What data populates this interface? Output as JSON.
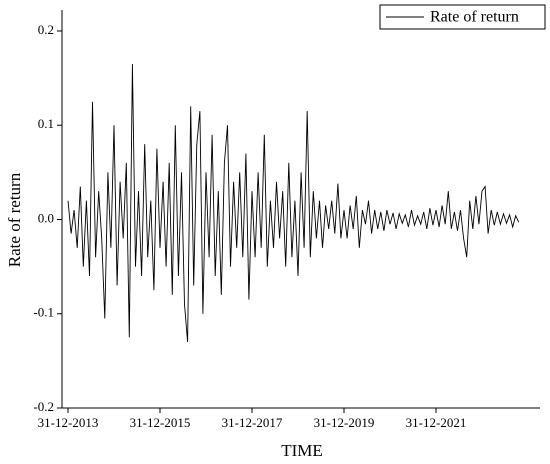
{
  "chart_data": {
    "type": "line",
    "title": null,
    "xlabel": "TIME",
    "ylabel": "Rate of return",
    "categories": [
      "31-12-2013",
      null,
      null,
      null,
      null,
      null,
      null,
      null,
      null,
      null,
      null,
      null,
      null,
      null,
      null,
      null,
      null,
      null,
      null,
      null,
      null,
      null,
      null,
      null,
      null,
      null,
      null,
      null,
      null,
      null,
      "31-12-2015",
      null,
      null,
      null,
      null,
      null,
      null,
      null,
      null,
      null,
      null,
      null,
      null,
      null,
      null,
      null,
      null,
      null,
      null,
      null,
      null,
      null,
      null,
      null,
      null,
      null,
      null,
      null,
      null,
      null,
      "31-12-2017",
      null,
      null,
      null,
      null,
      null,
      null,
      null,
      null,
      null,
      null,
      null,
      null,
      null,
      null,
      null,
      null,
      null,
      null,
      null,
      null,
      null,
      null,
      null,
      null,
      null,
      null,
      null,
      null,
      null,
      "31-12-2019",
      null,
      null,
      null,
      null,
      null,
      null,
      null,
      null,
      null,
      null,
      null,
      null,
      null,
      null,
      null,
      null,
      null,
      null,
      null,
      null,
      null,
      null,
      null,
      null,
      null,
      null,
      null,
      null,
      null,
      "31-12-2021",
      null,
      null,
      null,
      null,
      null,
      null,
      null,
      null,
      null,
      null,
      null,
      null,
      null,
      null,
      null,
      null,
      null,
      null,
      null,
      null,
      null,
      null,
      null,
      null,
      null,
      null,
      null
    ],
    "series": [
      {
        "name": "Rate of return",
        "color": "#000000",
        "values": [
          0.02,
          -0.015,
          0.01,
          -0.03,
          0.035,
          -0.05,
          0.02,
          -0.06,
          0.125,
          -0.04,
          0.03,
          -0.02,
          -0.105,
          0.05,
          -0.03,
          0.1,
          -0.07,
          0.04,
          -0.02,
          0.06,
          -0.125,
          0.165,
          -0.05,
          0.03,
          -0.06,
          0.08,
          -0.04,
          0.02,
          -0.075,
          0.075,
          -0.03,
          0.04,
          -0.05,
          0.06,
          -0.08,
          0.1,
          -0.06,
          0.05,
          -0.09,
          -0.13,
          0.12,
          -0.07,
          0.08,
          0.115,
          -0.1,
          0.05,
          -0.04,
          0.09,
          -0.06,
          0.03,
          -0.08,
          0.06,
          0.1,
          -0.05,
          0.04,
          -0.03,
          0.05,
          -0.04,
          0.07,
          -0.085,
          0.03,
          -0.04,
          0.05,
          -0.03,
          0.09,
          -0.05,
          0.02,
          -0.03,
          0.04,
          -0.02,
          0.03,
          -0.05,
          0.06,
          -0.04,
          0.02,
          -0.06,
          0.05,
          -0.03,
          0.115,
          -0.04,
          0.03,
          -0.02,
          0.02,
          -0.03,
          0.015,
          -0.01,
          0.02,
          -0.015,
          0.038,
          -0.02,
          0.01,
          -0.02,
          0.015,
          -0.01,
          0.025,
          -0.03,
          0.01,
          -0.005,
          0.02,
          -0.015,
          0.01,
          -0.01,
          0.008,
          -0.012,
          0.01,
          -0.005,
          0.007,
          -0.01,
          0.006,
          -0.004,
          0.005,
          -0.008,
          0.01,
          -0.006,
          0.004,
          -0.005,
          0.008,
          -0.01,
          0.012,
          -0.006,
          0.01,
          -0.008,
          0.015,
          -0.005,
          0.03,
          -0.01,
          0.008,
          -0.012,
          0.01,
          -0.02,
          -0.04,
          0.02,
          -0.01,
          0.025,
          -0.005,
          0.03,
          0.035,
          -0.015,
          0.01,
          -0.006,
          0.008,
          -0.005,
          0.006,
          -0.004,
          0.005,
          -0.008,
          0.004,
          -0.003
        ]
      }
    ],
    "ylim": [
      -0.2,
      0.2
    ],
    "yticks": [
      -0.2,
      -0.1,
      {
        "value": 0,
        "label": "0.0"
      },
      0.1,
      0.2
    ],
    "legend": "upper right"
  }
}
